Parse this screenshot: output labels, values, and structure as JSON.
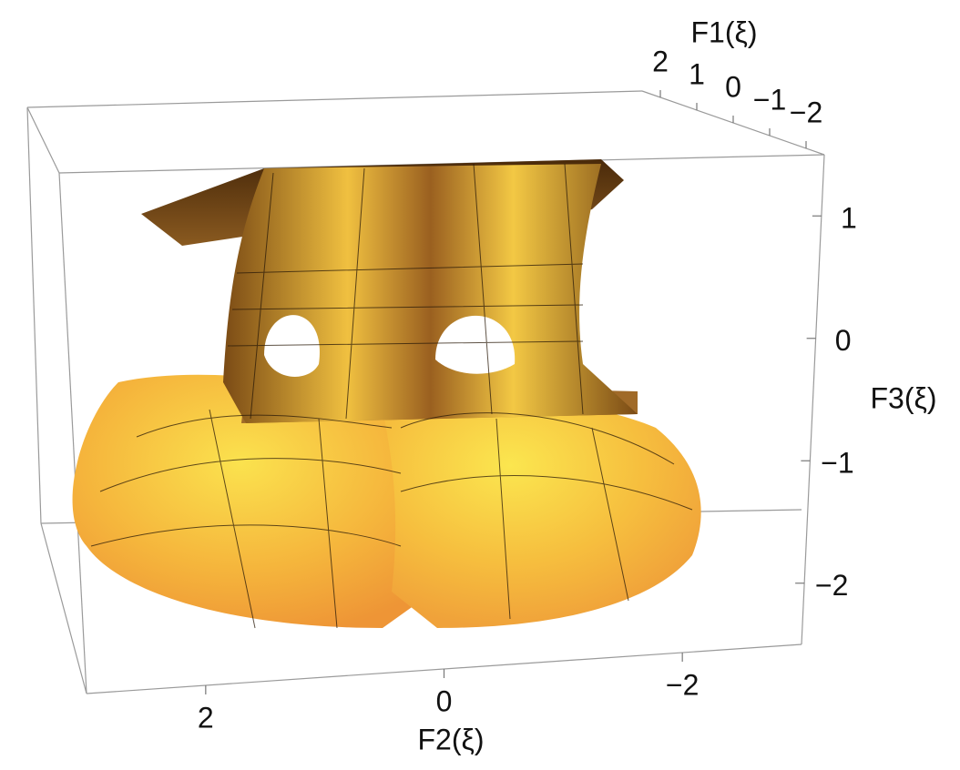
{
  "chart_data": {
    "type": "surface3d",
    "xlabel": "F2(ξ)",
    "ylabel": "F1(ξ)",
    "zlabel": "F3(ξ)",
    "xlim": [
      -3,
      3
    ],
    "xticks": [
      {
        "value": -2,
        "label": "−2"
      },
      0,
      2
    ],
    "ylim": [
      -2.5,
      2.5
    ],
    "yticks": [
      {
        "value": -2,
        "label": "−2"
      },
      {
        "value": -1,
        "label": "−1"
      },
      0,
      1,
      2
    ],
    "zlim": [
      -2.5,
      1.5
    ],
    "zticks": [
      {
        "value": -2,
        "label": "−2"
      },
      {
        "value": -1,
        "label": "−1"
      },
      0,
      1
    ]
  }
}
